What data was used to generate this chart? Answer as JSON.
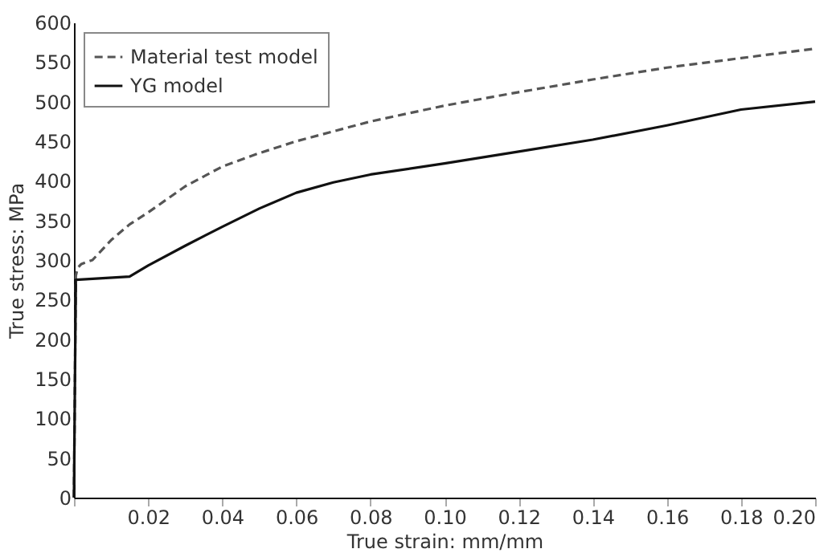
{
  "chart_data": {
    "type": "line",
    "xlabel": "True strain: mm/mm",
    "ylabel": "True stress: MPa",
    "xlim": [
      0,
      0.2
    ],
    "ylim": [
      0,
      600
    ],
    "xticks": [
      {
        "value": 0,
        "label": null
      },
      0.02,
      0.04,
      0.06,
      0.08,
      {
        "value": 0.1,
        "label": "0.10"
      },
      0.12,
      0.14,
      0.16,
      0.18,
      {
        "value": 0.2,
        "label": "0.20"
      }
    ],
    "yticks": [
      0,
      50,
      100,
      150,
      200,
      250,
      300,
      350,
      400,
      450,
      500,
      550,
      600
    ],
    "grid": false,
    "legend": "top left",
    "marker": "none",
    "series": [
      {
        "name": "Material test model",
        "color": "#555555",
        "line_style": "dashed",
        "x": [
          0,
          0.0005,
          0.001,
          0.002,
          0.005,
          0.01,
          0.015,
          0.02,
          0.03,
          0.04,
          0.05,
          0.06,
          0.08,
          0.1,
          0.12,
          0.14,
          0.16,
          0.18,
          0.2
        ],
        "values": [
          0,
          280,
          290,
          295,
          300,
          325,
          345,
          360,
          393,
          418,
          435,
          450,
          475,
          495,
          512,
          528,
          543,
          555,
          567
        ]
      },
      {
        "name": "YG model",
        "color": "#111111",
        "line_style": "solid",
        "x": [
          0,
          0.0005,
          0.015,
          0.02,
          0.03,
          0.04,
          0.05,
          0.06,
          0.07,
          0.08,
          0.1,
          0.12,
          0.14,
          0.16,
          0.18,
          0.2
        ],
        "values": [
          0,
          275,
          279,
          293,
          318,
          342,
          365,
          385,
          398,
          408,
          422,
          437,
          452,
          470,
          490,
          500
        ]
      }
    ]
  }
}
